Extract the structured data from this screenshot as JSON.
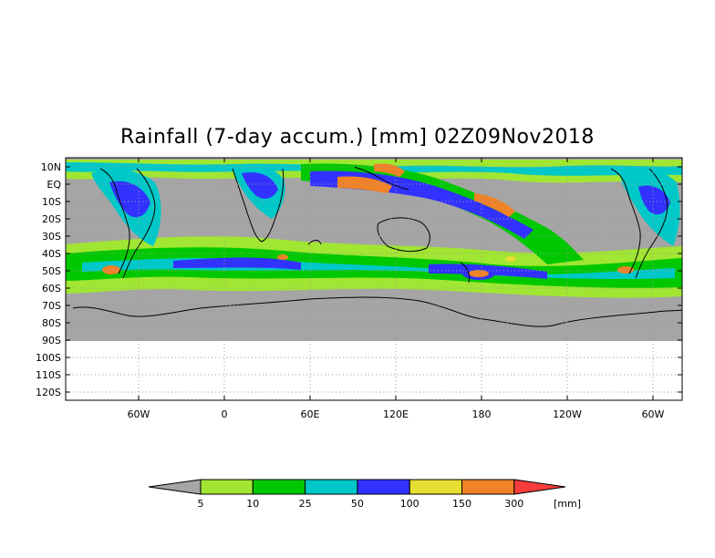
{
  "title": "Rainfall (7-day accum.) [mm] 02Z09Nov2018",
  "lat_labels": [
    "10N",
    "EQ",
    "10S",
    "20S",
    "30S",
    "40S",
    "50S",
    "60S",
    "70S",
    "80S",
    "90S",
    "100S",
    "110S",
    "120S"
  ],
  "lon_labels": [
    "60W",
    "0",
    "60E",
    "120E",
    "180",
    "120W",
    "60W"
  ],
  "colorbar": {
    "unit": "[mm]",
    "thresholds": [
      "5",
      "10",
      "25",
      "50",
      "100",
      "150",
      "300"
    ],
    "colors": [
      "#a5a5a5",
      "#a0e632",
      "#00c800",
      "#00c8c8",
      "#3232ff",
      "#e6dc32",
      "#f08228",
      "#fa3c3c"
    ]
  },
  "map_colors": {
    "land_or_no_rain": "#a5a5a5",
    "no_data": "#ffffff",
    "coastline": "#000000"
  }
}
